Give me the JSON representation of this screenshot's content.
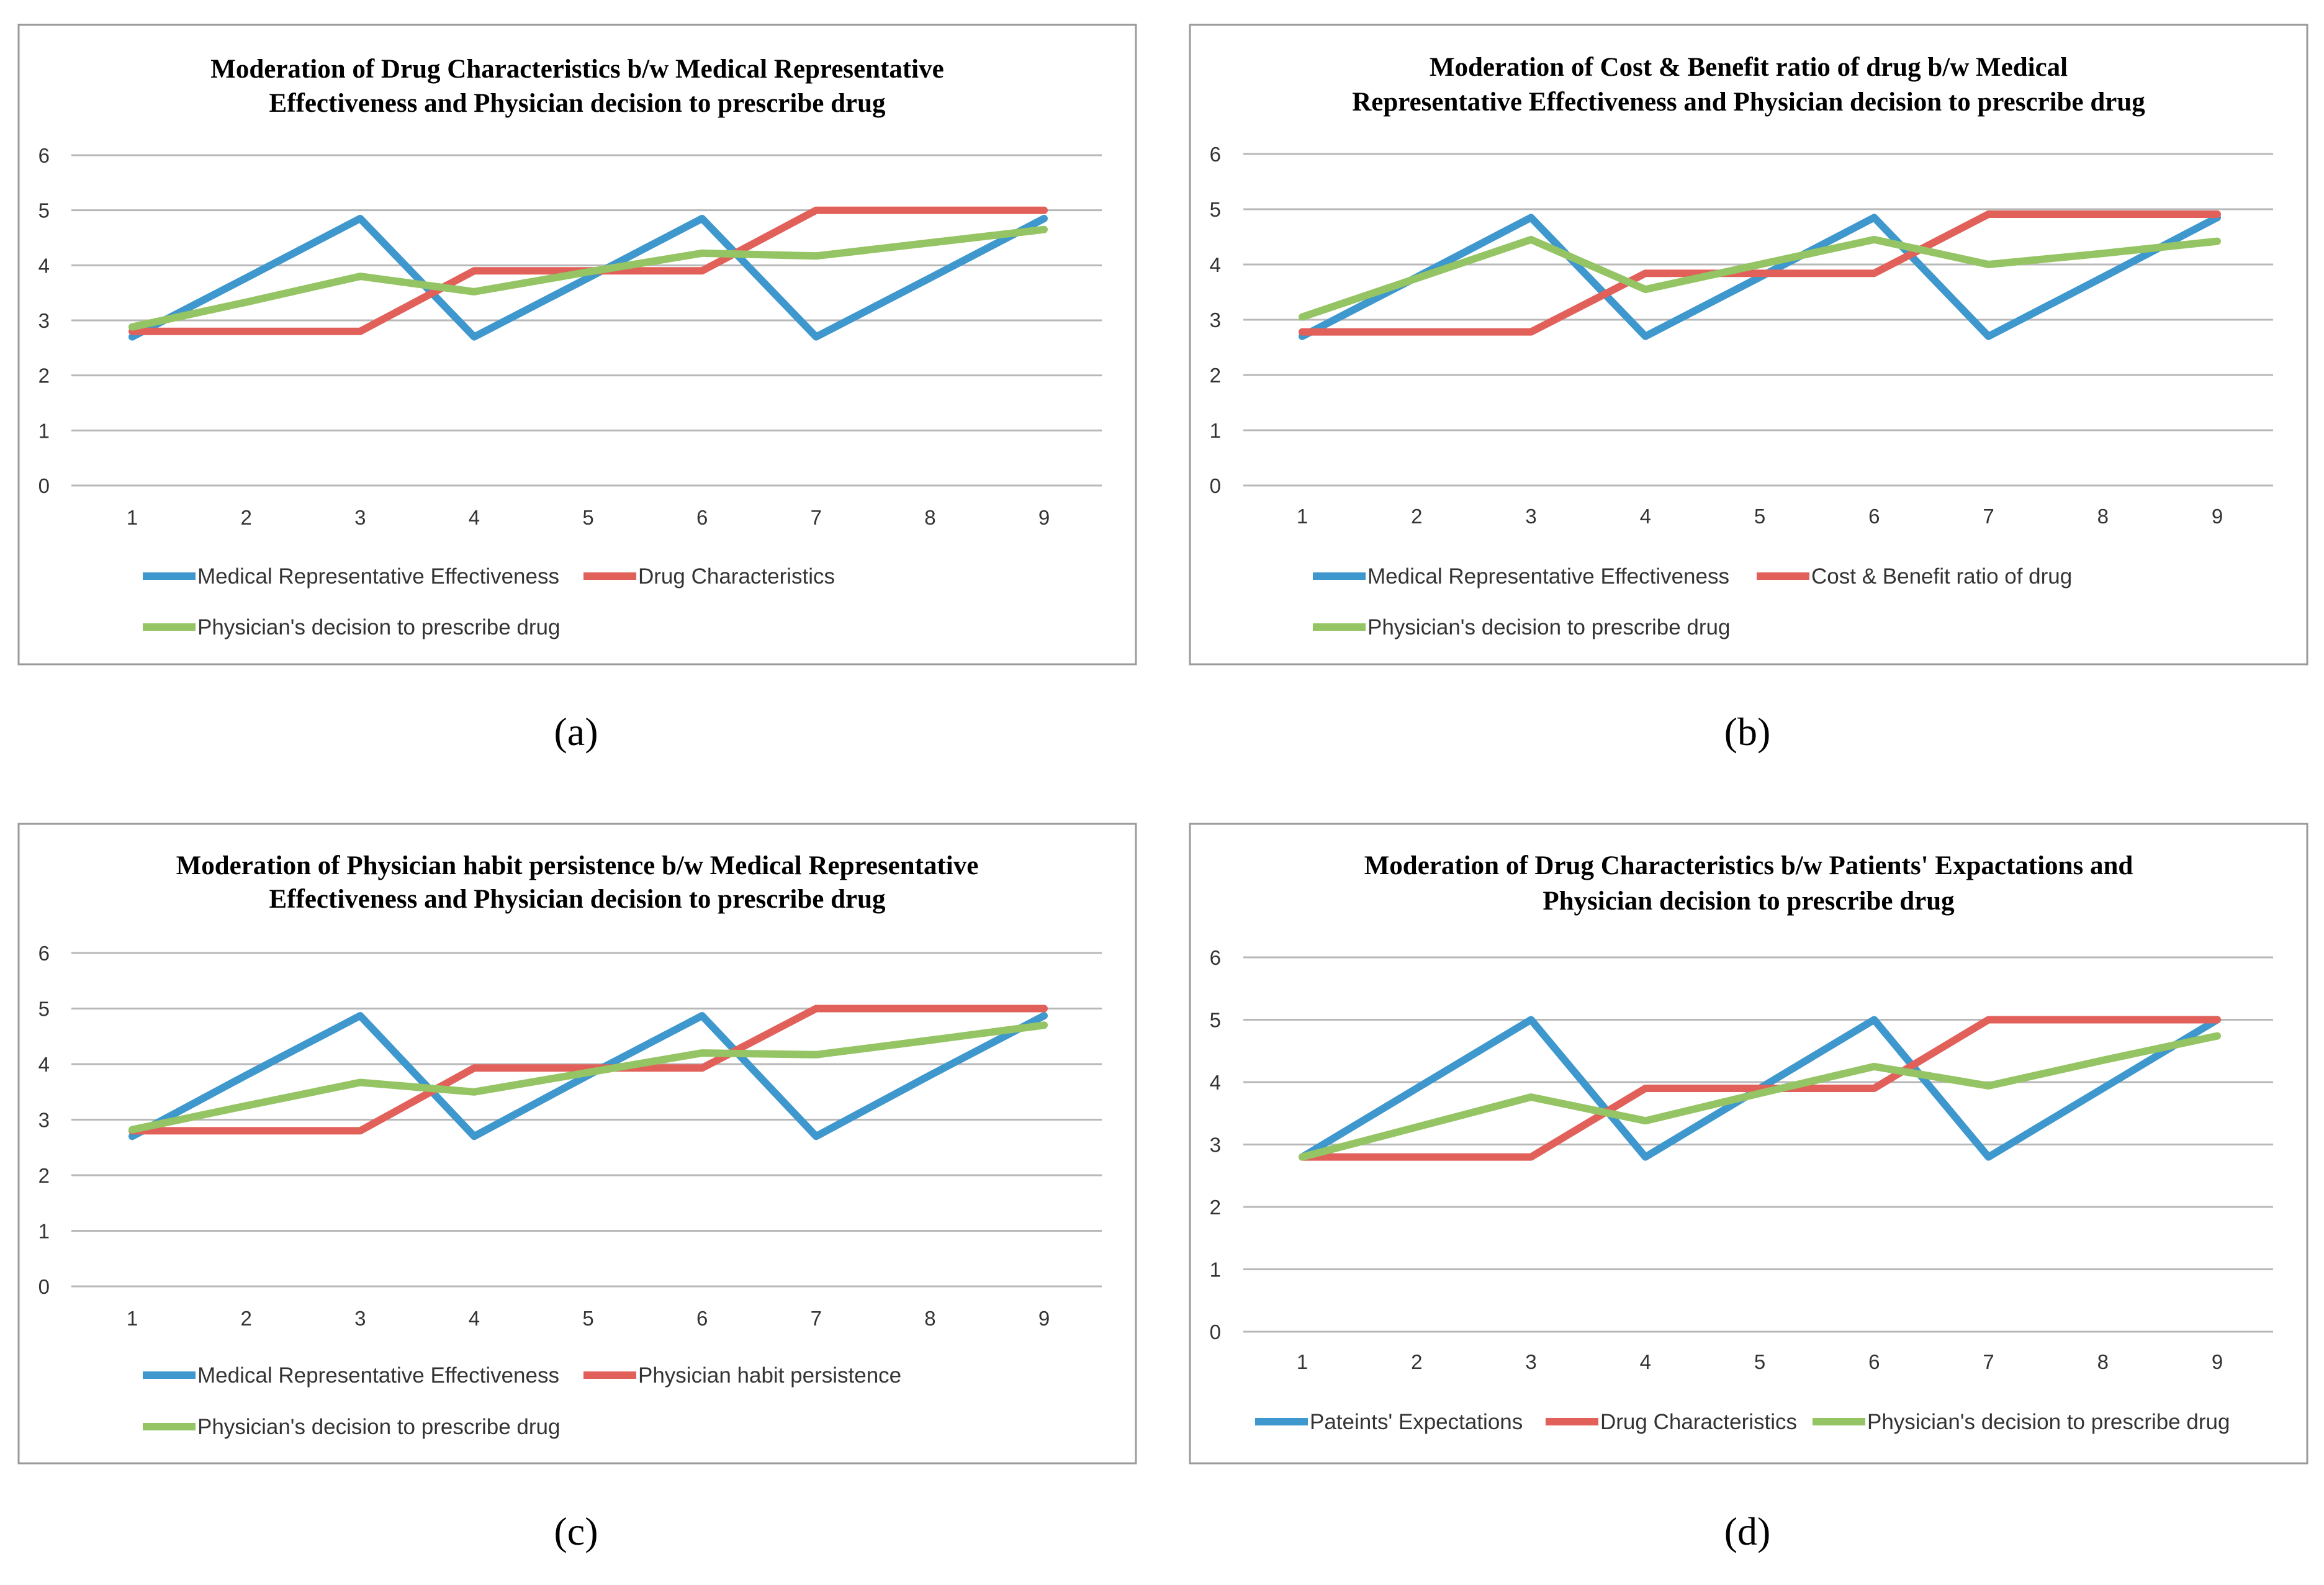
{
  "chart_data": [
    {
      "type": "line",
      "caption": "(a)",
      "title": [
        "Moderation of Drug Characteristics b/w Medical Representative",
        "Effectiveness and Physician decision to prescribe drug"
      ],
      "x": [
        1,
        2,
        3,
        4,
        5,
        6,
        7,
        8,
        9
      ],
      "ylim": [
        0,
        6
      ],
      "yticks": [
        0,
        1,
        2,
        3,
        4,
        5,
        6
      ],
      "grid": true,
      "legend_position": "bottom",
      "series": [
        {
          "name": "Medical Representative Effectiveness",
          "color": "#3e97cd",
          "values": [
            2.7,
            3.77,
            4.85,
            2.7,
            3.77,
            4.85,
            2.7,
            3.77,
            4.85
          ]
        },
        {
          "name": "Drug Characteristics",
          "color": "#e2605a",
          "values": [
            2.8,
            2.8,
            2.8,
            3.9,
            3.9,
            3.9,
            5,
            5,
            5
          ]
        },
        {
          "name": "Physician's decision to prescribe drug",
          "color": "#94c463",
          "values": [
            2.88,
            3.33,
            3.8,
            3.52,
            3.88,
            4.22,
            4.17,
            4.41,
            4.65
          ]
        }
      ]
    },
    {
      "type": "line",
      "caption": "(b)",
      "title": [
        "Moderation of Cost & Benefit ratio of drug b/w Medical",
        "Representative Effectiveness and Physician decision to prescribe drug"
      ],
      "x": [
        1,
        2,
        3,
        4,
        5,
        6,
        7,
        8,
        9
      ],
      "ylim": [
        0,
        6
      ],
      "yticks": [
        0,
        1,
        2,
        3,
        4,
        5,
        6
      ],
      "grid": true,
      "legend_position": "bottom",
      "series": [
        {
          "name": "Medical Representative Effectiveness",
          "color": "#3e97cd",
          "values": [
            2.7,
            3.77,
            4.85,
            2.7,
            3.77,
            4.85,
            2.7,
            3.77,
            4.85
          ]
        },
        {
          "name": "Cost & Benefit ratio of drug",
          "color": "#e2605a",
          "values": [
            2.78,
            2.78,
            2.78,
            3.84,
            3.84,
            3.84,
            4.91,
            4.91,
            4.91
          ]
        },
        {
          "name": "Physician's decision to prescribe drug",
          "color": "#94c463",
          "values": [
            3.05,
            3.75,
            4.45,
            3.55,
            4.0,
            4.45,
            4.0,
            4.2,
            4.42
          ]
        }
      ]
    },
    {
      "type": "line",
      "caption": "(c)",
      "title": [
        "Moderation of Physician habit persistence b/w Medical Representative",
        "Effectiveness and Physician decision to prescribe drug"
      ],
      "x": [
        1,
        2,
        3,
        4,
        5,
        6,
        7,
        8,
        9
      ],
      "ylim": [
        0,
        6
      ],
      "yticks": [
        0,
        1,
        2,
        3,
        4,
        5,
        6
      ],
      "grid": true,
      "legend_position": "bottom",
      "series": [
        {
          "name": "Medical Representative Effectiveness",
          "color": "#3e97cd",
          "values": [
            2.7,
            3.8,
            4.87,
            2.7,
            3.8,
            4.87,
            2.7,
            3.8,
            4.87
          ]
        },
        {
          "name": "Physician habit persistence",
          "color": "#e2605a",
          "values": [
            2.8,
            2.8,
            2.8,
            3.93,
            3.93,
            3.93,
            5,
            5,
            5
          ]
        },
        {
          "name": "Physician's decision to prescribe drug",
          "color": "#94c463",
          "values": [
            2.82,
            3.25,
            3.67,
            3.5,
            3.85,
            4.2,
            4.17,
            4.43,
            4.7
          ]
        }
      ]
    },
    {
      "type": "line",
      "caption": "(d)",
      "title": [
        "Moderation of Drug Characteristics b/w Patients' Expactations and",
        "Physician decision to prescribe drug"
      ],
      "x": [
        1,
        2,
        3,
        4,
        5,
        6,
        7,
        8,
        9
      ],
      "ylim": [
        0,
        6
      ],
      "yticks": [
        0,
        1,
        2,
        3,
        4,
        5,
        6
      ],
      "grid": true,
      "legend_position": "bottom",
      "series": [
        {
          "name": "Pateints' Expectations",
          "color": "#3e97cd",
          "values": [
            2.8,
            3.9,
            5,
            2.8,
            3.9,
            5,
            2.8,
            3.9,
            5
          ]
        },
        {
          "name": "Drug Characteristics",
          "color": "#e2605a",
          "values": [
            2.8,
            2.8,
            2.8,
            3.9,
            3.9,
            3.9,
            5,
            5,
            5
          ]
        },
        {
          "name": "Physician's decision to prescribe drug",
          "color": "#94c463",
          "values": [
            2.8,
            3.28,
            3.76,
            3.38,
            3.82,
            4.25,
            3.94,
            4.35,
            4.74
          ]
        }
      ]
    }
  ]
}
